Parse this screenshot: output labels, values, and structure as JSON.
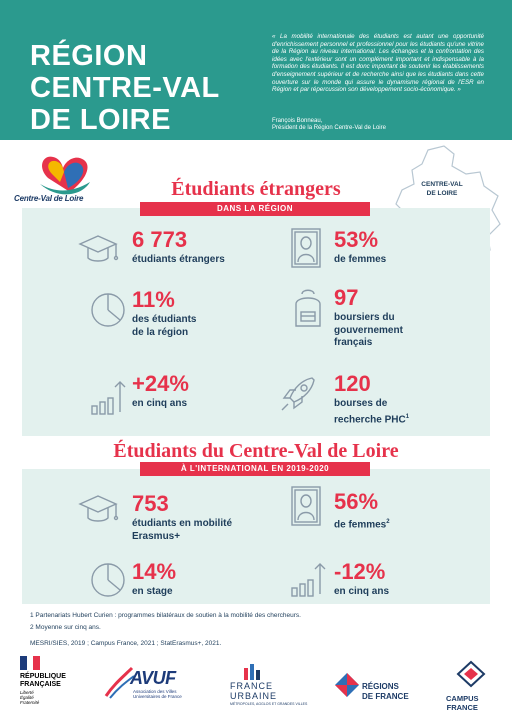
{
  "header": {
    "title": "RÉGION CENTRE-VAL DE LOIRE",
    "quote": "« La mobilité internationale des étudiants est autant une opportunité d'enrichissement personnel et professionnel pour les étudiants qu'une vitrine de la Région au niveau international. Les échanges et la confrontation des idées avec l'extérieur sont un complément important et indispensable à la formation des étudiants. Il est donc important de soutenir les établissements d'enseignement supérieur et de recherche ainsi que les étudiants dans cette ouverture sur le monde qui assure le dynamisme régional de l'ESR en Région et par répercussion son développement socio-économique. »",
    "author_name": "François Bonneau,",
    "author_role": "Président de la Région Centre-Val de Loire"
  },
  "region_logo": {
    "text": "Centre-Val de Loire",
    "small": "Région"
  },
  "map": {
    "label_line1": "CENTRE-VAL",
    "label_line2": "DE LOIRE",
    "fill": "#ffffff",
    "stroke": "#b8c7d2"
  },
  "section1": {
    "title": "Étudiants étrangers",
    "banner": "DANS LA RÉGION",
    "stats": [
      {
        "value": "6 773",
        "label_lines": [
          "étudiants étrangers"
        ],
        "icon": "graduation-cap-icon"
      },
      {
        "value": "53%",
        "label_lines": [
          "de femmes"
        ],
        "icon": "mona-lisa-icon"
      },
      {
        "value": "11%",
        "label_lines": [
          "des étudiants",
          "de la région"
        ],
        "icon": "pie-chart-icon"
      },
      {
        "value": "97",
        "label_lines": [
          "boursiers du",
          "gouvernement",
          "français"
        ],
        "icon": "backpack-icon"
      },
      {
        "value": "+24%",
        "label_lines": [
          "en cinq ans"
        ],
        "icon": "growth-bars-icon"
      },
      {
        "value": "120",
        "label_lines": [
          "bourses de",
          "recherche PHC"
        ],
        "sup": "1",
        "icon": "rocket-icon"
      }
    ]
  },
  "section2": {
    "title": "Étudiants du Centre-Val de Loire",
    "banner": "À L'INTERNATIONAL EN 2019-2020",
    "stats": [
      {
        "value": "753",
        "label_lines": [
          "étudiants en mobilité",
          "Erasmus+"
        ],
        "icon": "graduation-cap-icon"
      },
      {
        "value": "56%",
        "label_lines": [
          "de femmes"
        ],
        "sup": "2",
        "icon": "mona-lisa-icon"
      },
      {
        "value": "14%",
        "label_lines": [
          "en stage"
        ],
        "icon": "pie-chart-icon"
      },
      {
        "value": "-12%",
        "label_lines": [
          "en cinq ans"
        ],
        "icon": "decline-bars-icon"
      }
    ]
  },
  "footnotes": {
    "note1": "1 Partenariats Hubert Curien : programmes bilatéraux de soutien à la mobilité des chercheurs.",
    "note2": "2 Moyenne sur cinq ans.",
    "sources": "MESRI/SIES, 2019 ; Campus France, 2021 ; StatErasmus+, 2021."
  },
  "logos": {
    "rf_line1": "RÉPUBLIQUE",
    "rf_line2": "FRANÇAISE",
    "rf_motto1": "Liberté",
    "rf_motto2": "Égalité",
    "rf_motto3": "Fraternité",
    "avuf": "AVUF",
    "avuf_sub1": "Association des Villes",
    "avuf_sub2": "Universitaires de France",
    "fu_line1": "FRANCE",
    "fu_line2": "URBAINE",
    "fu_sub": "MÉTROPOLES, AGGLOS ET GRANDES VILLES",
    "rdf_line1": "RÉGIONS",
    "rdf_line2": "DE FRANCE",
    "cf_line1": "CAMPUS",
    "cf_line2": "FRANCE"
  },
  "colors": {
    "teal": "#2b9a8e",
    "red": "#e6324b",
    "navy": "#1e3d5a",
    "panel": "#e3f1ee"
  }
}
